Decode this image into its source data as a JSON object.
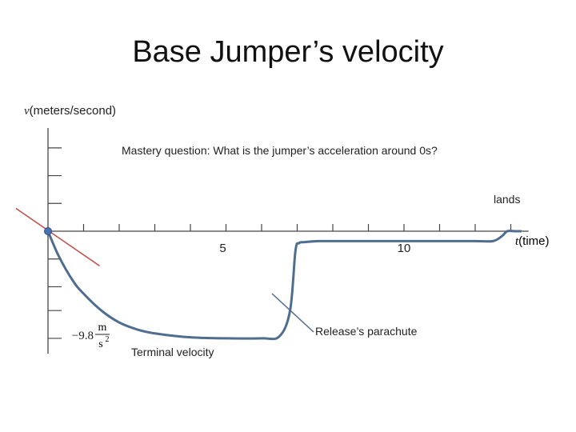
{
  "title": "Base Jumper’s velocity",
  "chart_data": {
    "type": "line",
    "title": "Base Jumper’s velocity",
    "ylabel": {
      "var": "v",
      "unit": "(meters/second)"
    },
    "xlabel": {
      "var": "t",
      "unit": "(time)"
    },
    "xlim": [
      0,
      13
    ],
    "ylim": [
      -11,
      8
    ],
    "x_tick_labels": [
      {
        "x": 5,
        "label": "5"
      },
      {
        "x": 10,
        "label": "10"
      }
    ],
    "y_tick_label": {
      "value": -9.8,
      "text": "−9.8",
      "unit_num": "m",
      "unit_den": "s",
      "unit_exp": "2"
    },
    "series": [
      {
        "x": [
          0,
          0.3,
          0.7,
          1.0,
          1.5,
          2.0,
          2.5,
          3.0,
          4.0,
          5.0,
          6.0,
          6.5,
          6.8,
          6.95,
          7.05,
          7.2,
          7.6,
          8.0,
          9.0,
          10.0,
          11.0,
          12.0,
          12.5,
          12.75,
          12.9,
          13.1,
          13.3
        ],
        "y": [
          0,
          -2.5,
          -5.0,
          -6.3,
          -8.0,
          -9.2,
          -9.9,
          -10.3,
          -10.7,
          -10.8,
          -10.8,
          -10.6,
          -8.0,
          -2.0,
          -1.2,
          -1.1,
          -1.0,
          -1.0,
          -1.0,
          -1.0,
          -1.0,
          -1.0,
          -1.0,
          -0.5,
          0.0,
          0.0,
          0.0
        ]
      }
    ],
    "tangent_line": {
      "x": [
        -0.9,
        1.45
      ],
      "y": [
        2.3,
        -3.5
      ],
      "color": "#c0504d"
    },
    "point": {
      "x": 0,
      "y": 0
    },
    "annotations": {
      "question": "Mastery question: What is the jumper’s acceleration around 0s?",
      "lands": "lands",
      "release": "Release’s parachute",
      "terminal": "Terminal velocity"
    },
    "colors": {
      "curve": "#4f6d8f",
      "axis": "#444444",
      "tangent": "#c0504d",
      "arrow": "#4f6d8f"
    }
  }
}
